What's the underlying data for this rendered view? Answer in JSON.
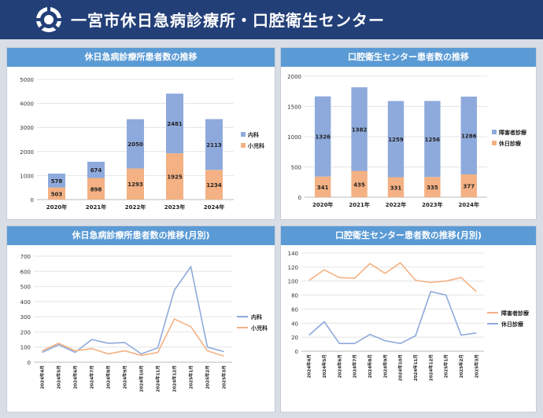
{
  "header": {
    "title": "一宮市休日急病診療所・口腔衛生センター"
  },
  "colors": {
    "header": "#233f78",
    "panel_title": "#5b9bd5",
    "blue": "#8eaadc",
    "orange": "#f4b183",
    "line_blue": "#8eaadc",
    "line_orange": "#f4b183"
  },
  "panels": {
    "p1": {
      "title": "休日急病診療所患者数の推移"
    },
    "p2": {
      "title": "口腔衛生センター患者数の推移"
    },
    "p3": {
      "title": "休日急病診療所患者数の推移(月別)"
    },
    "p4": {
      "title": "口腔衛生センター患者数の推移(月別)"
    }
  },
  "chart_data": [
    {
      "type": "bar",
      "title": "休日急病診療所患者数の推移",
      "categories": [
        "2020年",
        "2021年",
        "2022年",
        "2023年",
        "2024年"
      ],
      "series": [
        {
          "name": "小児科",
          "values": [
            503,
            898,
            1293,
            1925,
            1234
          ]
        },
        {
          "name": "内科",
          "values": [
            578,
            674,
            2050,
            2481,
            2113
          ]
        }
      ],
      "stacked": true,
      "ylim": [
        0,
        5000
      ],
      "yticks": [
        0,
        1000,
        2000,
        3000,
        4000,
        5000
      ],
      "legend": "right"
    },
    {
      "type": "bar",
      "title": "口腔衛生センター患者数の推移",
      "categories": [
        "2020年",
        "2021年",
        "2022年",
        "2023年",
        "2024年"
      ],
      "series": [
        {
          "name": "休日診療",
          "values": [
            341,
            435,
            331,
            335,
            377
          ]
        },
        {
          "name": "障害者診療",
          "values": [
            1326,
            1382,
            1259,
            1256,
            1286
          ]
        }
      ],
      "stacked": true,
      "ylim": [
        0,
        2000
      ],
      "yticks": [
        0,
        500,
        1000,
        1500,
        2000
      ],
      "legend": "right"
    },
    {
      "type": "line",
      "title": "休日急病診療所患者数の推移(月別)",
      "categories": [
        "2024年4月",
        "2024年5月",
        "2024年6月",
        "2024年7月",
        "2024年8月",
        "2024年9月",
        "2024年10月",
        "2024年11月",
        "2024年12月",
        "2025年1月",
        "2025年2月",
        "2025年3月"
      ],
      "series": [
        {
          "name": "内科",
          "values": [
            65,
            115,
            65,
            150,
            125,
            130,
            55,
            95,
            475,
            630,
            100,
            70
          ]
        },
        {
          "name": "小児科",
          "values": [
            75,
            125,
            75,
            90,
            55,
            75,
            45,
            65,
            285,
            235,
            75,
            40
          ]
        }
      ],
      "ylim": [
        0,
        700
      ],
      "yticks": [
        0,
        100,
        200,
        300,
        400,
        500,
        600,
        700
      ],
      "legend": "right"
    },
    {
      "type": "line",
      "title": "口腔衛生センター患者数の推移(月別)",
      "categories": [
        "2024年4月",
        "2024年5月",
        "2024年6月",
        "2024年7月",
        "2024年8月",
        "2024年9月",
        "2024年10月",
        "2024年11月",
        "2024年12月",
        "2025年1月",
        "2025年2月",
        "2025年3月"
      ],
      "series": [
        {
          "name": "障害者診療",
          "values": [
            101,
            116,
            105,
            104,
            125,
            111,
            126,
            101,
            98,
            100,
            105,
            85
          ]
        },
        {
          "name": "休日診療",
          "values": [
            23,
            42,
            11,
            11,
            24,
            15,
            11,
            22,
            85,
            80,
            23,
            26
          ]
        }
      ],
      "ylim": [
        0,
        140
      ],
      "yticks": [
        0,
        20,
        40,
        60,
        80,
        100,
        120,
        140
      ],
      "legend": "right"
    }
  ]
}
